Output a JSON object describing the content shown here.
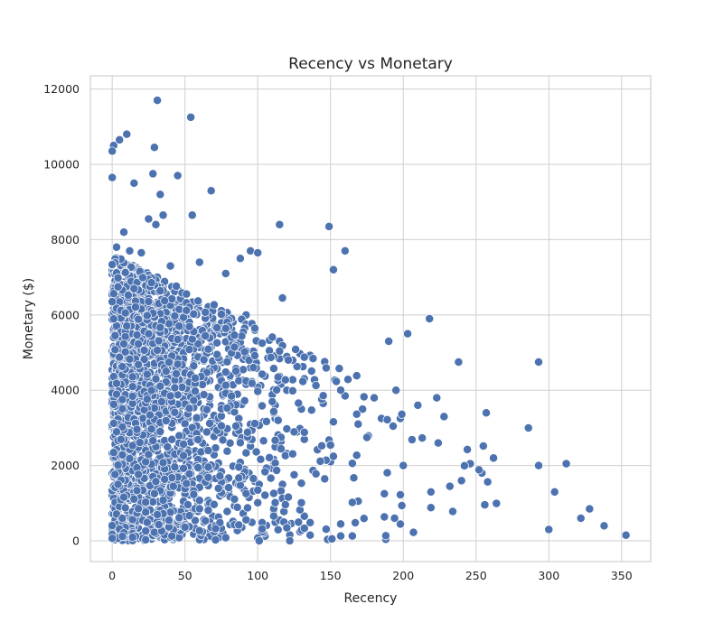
{
  "chart_data": {
    "type": "scatter",
    "title": "Recency vs Monetary",
    "xlabel": "Recency",
    "ylabel": "Monetary ($)",
    "xlim": [
      -15,
      370
    ],
    "ylim": [
      -550,
      12350
    ],
    "xticks": [
      0,
      50,
      100,
      150,
      200,
      250,
      300,
      350
    ],
    "yticks": [
      0,
      2000,
      4000,
      6000,
      8000,
      10000,
      12000
    ],
    "grid": true,
    "point_color": "#4c72b0",
    "x": [
      0,
      1,
      0,
      5,
      10,
      15,
      31,
      54,
      29,
      68,
      28,
      25,
      30,
      33,
      45,
      35,
      55,
      115,
      149,
      160,
      238,
      293,
      218,
      203,
      190,
      152,
      117,
      92,
      78,
      95,
      100,
      88,
      60,
      40,
      20,
      12,
      8,
      3,
      195,
      210,
      223,
      228,
      198,
      185,
      180,
      172,
      160,
      145,
      130,
      112,
      101,
      87,
      72,
      63,
      52,
      41,
      22,
      17,
      6,
      2,
      0,
      312,
      322,
      338,
      353,
      328,
      304,
      300,
      293,
      286,
      262,
      257,
      254,
      246,
      240,
      232,
      224,
      219,
      200,
      150,
      117
    ],
    "y": [
      9650,
      10500,
      10350,
      10650,
      10800,
      9500,
      11700,
      11250,
      10450,
      9300,
      9750,
      8550,
      8400,
      9200,
      9700,
      8650,
      8650,
      8400,
      8350,
      7700,
      4750,
      4750,
      5900,
      5500,
      5300,
      7200,
      6450,
      6000,
      7100,
      7700,
      7650,
      7500,
      7400,
      7300,
      7650,
      7700,
      8200,
      7800,
      4000,
      3600,
      3800,
      3300,
      3250,
      3250,
      3800,
      3500,
      3850,
      3650,
      3500,
      3250,
      3100,
      3250,
      3100,
      3350,
      3250,
      3300,
      3450,
      3250,
      3200,
      3150,
      3000,
      2050,
      600,
      400,
      150,
      850,
      1300,
      300,
      2000,
      3000,
      2200,
      3400,
      1800,
      2050,
      1600,
      1450,
      2600,
      1300,
      2000,
      2100,
      1500
    ]
  }
}
